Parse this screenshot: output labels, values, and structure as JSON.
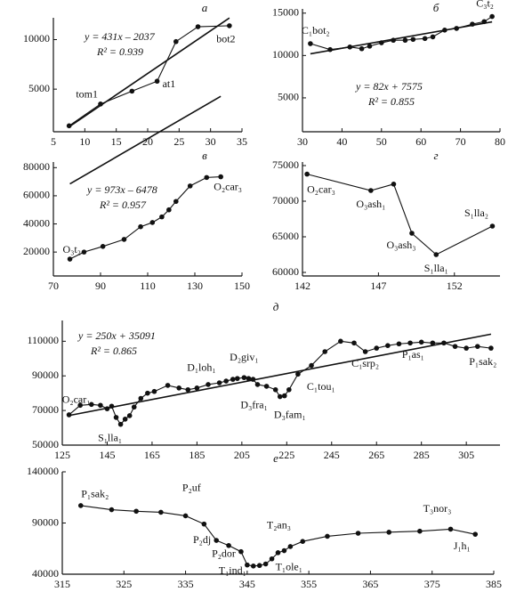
{
  "chart_data": [
    {
      "type": "line",
      "title": "а",
      "x": [
        7.5,
        12.5,
        17.5,
        21.5,
        24.5,
        28,
        33
      ],
      "values": [
        1300,
        3500,
        4800,
        5800,
        9800,
        11300,
        11400
      ],
      "point_labels": [
        null,
        "tom1",
        null,
        "at1",
        null,
        null,
        "bot2"
      ],
      "xlim": [
        5,
        35
      ],
      "xticks": [
        5,
        10,
        15,
        20,
        25,
        30,
        35
      ],
      "ylim": [
        700,
        12200
      ],
      "yticks": [
        5000,
        10000
      ],
      "trend": {
        "slope": 431,
        "intercept": -2037,
        "label": "y = 431x – 2037",
        "r2_label": "R² = 0.939"
      }
    },
    {
      "type": "line",
      "title": "б",
      "x": [
        32,
        37,
        42,
        45,
        47,
        50,
        53,
        56,
        58,
        61,
        63,
        66,
        69,
        73,
        76,
        78
      ],
      "values": [
        11400,
        10700,
        11000,
        10800,
        11100,
        11500,
        11800,
        11800,
        11900,
        12000,
        12200,
        13000,
        13200,
        13700,
        14000,
        14600
      ],
      "point_labels": [
        "C₁bot₂",
        null,
        null,
        null,
        null,
        null,
        null,
        null,
        null,
        null,
        null,
        null,
        null,
        null,
        null,
        "C₃t₂"
      ],
      "xlim": [
        30,
        80
      ],
      "xticks": [
        30,
        40,
        50,
        60,
        70,
        80
      ],
      "ylim": [
        1000,
        15500
      ],
      "yticks": [
        5000,
        10000,
        15000
      ],
      "trend": {
        "slope": 82,
        "intercept": 7575,
        "label": "y = 82x + 7575",
        "r2_label": "R² = 0.855"
      }
    },
    {
      "type": "line",
      "title": "в",
      "x": [
        77,
        83,
        91,
        100,
        107,
        112,
        116,
        119,
        122,
        128,
        135,
        141
      ],
      "values": [
        15000,
        20000,
        24000,
        29000,
        38000,
        41000,
        45000,
        50000,
        56000,
        67000,
        73000,
        73500
      ],
      "point_labels": [
        "O₃t₂",
        null,
        null,
        null,
        null,
        null,
        null,
        null,
        null,
        null,
        null,
        "O₂car₃"
      ],
      "xlim": [
        70,
        150
      ],
      "xticks": [
        70,
        90,
        110,
        130,
        150
      ],
      "ylim": [
        3000,
        84000
      ],
      "yticks": [
        20000,
        40000,
        60000,
        80000
      ],
      "trend": {
        "slope": 973,
        "intercept": -6478,
        "label": "y = 973x – 6478",
        "r2_label": "R² = 0.957"
      }
    },
    {
      "type": "line",
      "title": "г",
      "x": [
        142.3,
        146.5,
        148,
        149.2,
        150.8,
        154.5
      ],
      "values": [
        73800,
        71500,
        72400,
        65500,
        62500,
        66500
      ],
      "point_labels": [
        "O₂car₃",
        "O₃ash₁",
        null,
        "O₃ash₃",
        "S₁lla₁",
        "S₁lla₂"
      ],
      "xlim": [
        142,
        155
      ],
      "xticks": [
        142,
        147,
        152
      ],
      "ylim": [
        59500,
        75500
      ],
      "yticks": [
        60000,
        65000,
        70000,
        75000
      ]
    },
    {
      "type": "line",
      "title": "д",
      "x": [
        128,
        133,
        138,
        142,
        145,
        147,
        149,
        151,
        153,
        155,
        157,
        160,
        163,
        166,
        172,
        177,
        181,
        185,
        190,
        195,
        198,
        201,
        203,
        206,
        208,
        210,
        212,
        216,
        220,
        222,
        224,
        226,
        230,
        236,
        242,
        249,
        255,
        260,
        265,
        270,
        275,
        280,
        285,
        290,
        295,
        300,
        305,
        310,
        316
      ],
      "values": [
        67500,
        73000,
        73500,
        73000,
        71000,
        72500,
        66000,
        62000,
        65000,
        67000,
        72000,
        77000,
        80000,
        81000,
        84500,
        83000,
        82000,
        83000,
        85000,
        86000,
        87000,
        88000,
        88500,
        89000,
        88500,
        88000,
        85000,
        84000,
        82000,
        78000,
        78500,
        82000,
        91000,
        96000,
        104000,
        110000,
        109000,
        104000,
        106000,
        107500,
        108500,
        109000,
        109500,
        109000,
        109000,
        107000,
        106000,
        107000,
        106000
      ],
      "point_labels": [
        "O₂car₁",
        null,
        null,
        null,
        null,
        null,
        null,
        "S₁lla₁",
        null,
        null,
        null,
        null,
        null,
        null,
        null,
        null,
        null,
        "D₁loh₁",
        null,
        null,
        null,
        null,
        null,
        "D₂giv₁",
        null,
        null,
        null,
        "D₃fra₁",
        null,
        null,
        "D₃fam₁",
        null,
        "C₁tou₁",
        null,
        null,
        null,
        null,
        "C₁srp₂",
        null,
        null,
        null,
        null,
        null,
        "P₁as₁",
        null,
        null,
        null,
        "P₁sak₂",
        null
      ],
      "xlim": [
        125,
        320
      ],
      "xticks": [
        125,
        145,
        165,
        185,
        205,
        225,
        245,
        265,
        285,
        305
      ],
      "ylim": [
        50000,
        122000
      ],
      "yticks": [
        50000,
        70000,
        90000,
        110000
      ],
      "trend": {
        "slope": 250,
        "intercept": 35091,
        "label": "y = 250x + 35091",
        "r2_label": "R² = 0.865"
      }
    },
    {
      "type": "line",
      "title": "е",
      "x": [
        318,
        323,
        327,
        331,
        335,
        338,
        340,
        342,
        344,
        345,
        346,
        347,
        348,
        349,
        350,
        351,
        352,
        354,
        358,
        363,
        368,
        373,
        378,
        382
      ],
      "values": [
        107000,
        103000,
        101500,
        100500,
        97000,
        89000,
        73000,
        68000,
        62000,
        49000,
        48000,
        48500,
        50000,
        55000,
        61000,
        63000,
        67000,
        72000,
        77000,
        80000,
        81000,
        82000,
        84000,
        79000
      ],
      "point_labels": [
        "P₁sak₂",
        null,
        null,
        null,
        null,
        "P₂uf",
        "P₂dj",
        null,
        "P₂dor",
        null,
        "T₁ind₁",
        null,
        null,
        "T₁ole₁",
        null,
        "T₂an₃",
        null,
        null,
        null,
        null,
        null,
        null,
        "T₃nor₃",
        "J₁h₁"
      ],
      "xlim": [
        315,
        385
      ],
      "xticks": [
        315,
        325,
        335,
        345,
        355,
        365,
        375,
        385
      ],
      "ylim": [
        40000,
        140000
      ],
      "yticks": [
        40000,
        90000,
        140000
      ]
    }
  ]
}
